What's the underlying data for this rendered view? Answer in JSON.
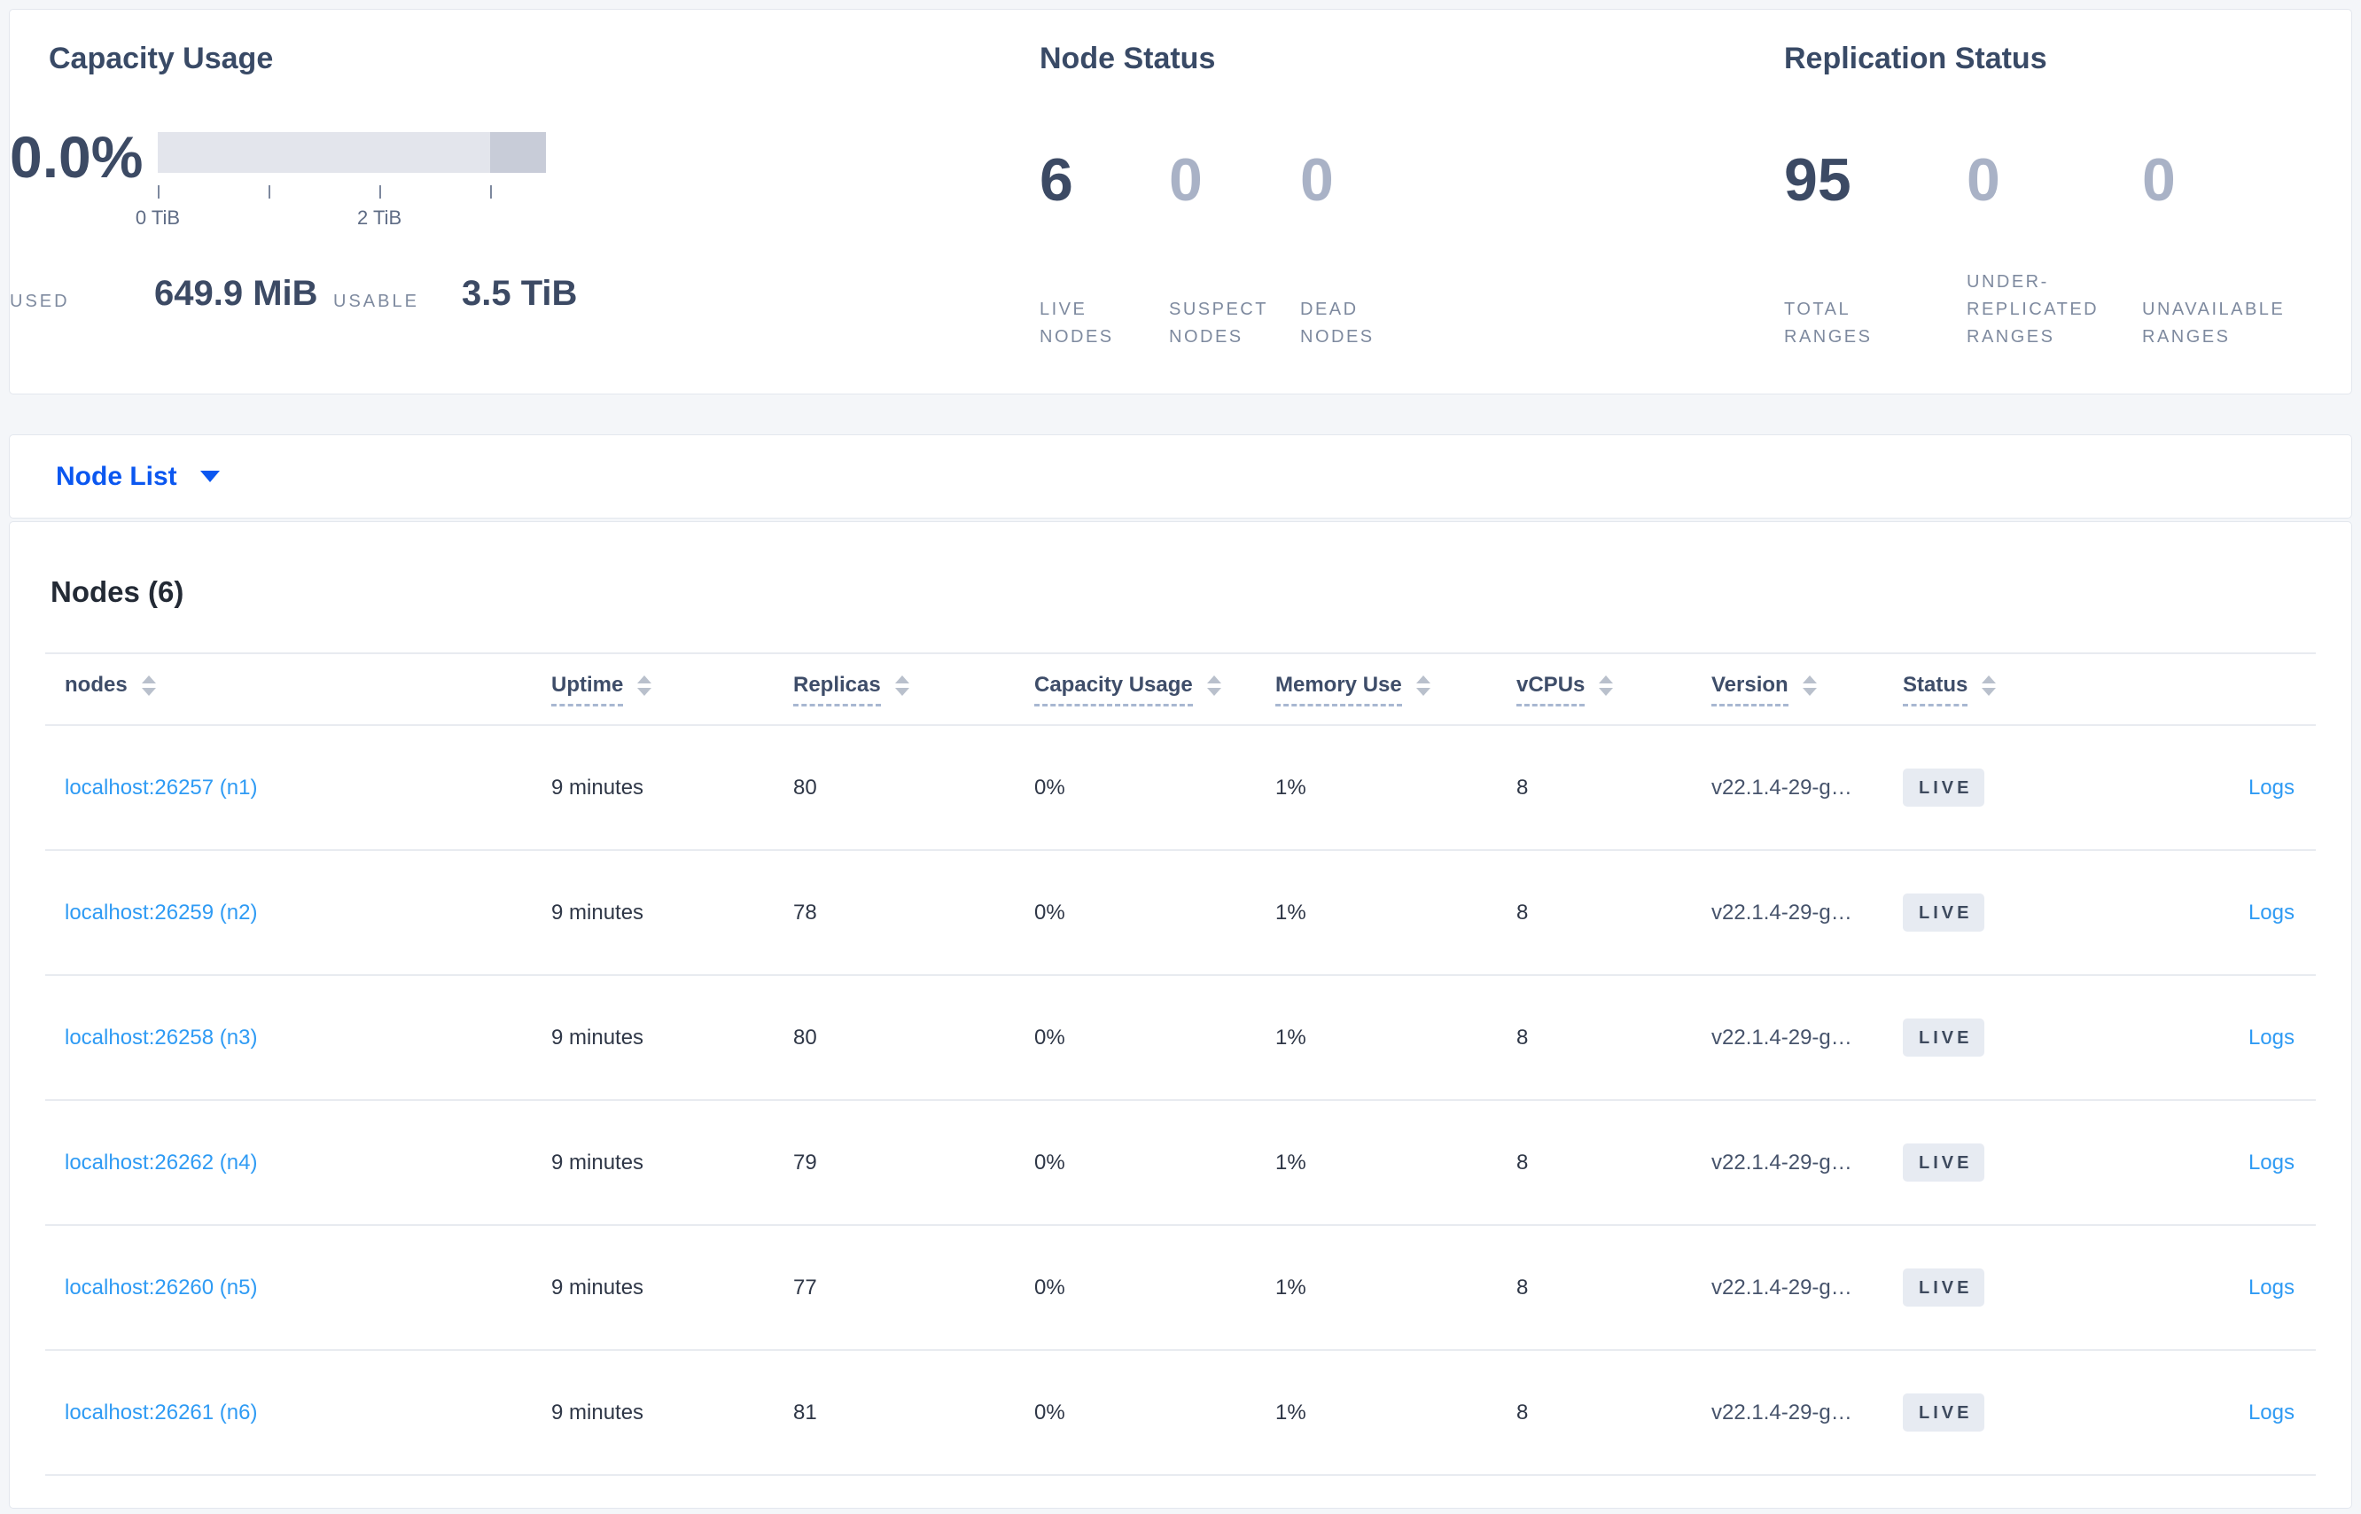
{
  "summary": {
    "capacity": {
      "title": "Capacity Usage",
      "percent": "0.0%",
      "bar": {
        "dark_segment_start_pct": 85.7
      },
      "ticks": [
        {
          "pos_pct": 0,
          "label": "0 TiB"
        },
        {
          "pos_pct": 28.6,
          "label": ""
        },
        {
          "pos_pct": 57.1,
          "label": "2 TiB"
        },
        {
          "pos_pct": 85.7,
          "label": ""
        }
      ],
      "used_label": "USED",
      "used_value": "649.9 MiB",
      "usable_label": "USABLE",
      "usable_value": "3.5 TiB"
    },
    "node_status": {
      "title": "Node Status",
      "stats": [
        {
          "value": "6",
          "label": "LIVE NODES",
          "emphasis": true
        },
        {
          "value": "0",
          "label": "SUSPECT NODES",
          "emphasis": false
        },
        {
          "value": "0",
          "label": "DEAD NODES",
          "emphasis": false
        }
      ]
    },
    "replication_status": {
      "title": "Replication Status",
      "stats": [
        {
          "value": "95",
          "label": "TOTAL RANGES",
          "emphasis": true
        },
        {
          "value": "0",
          "label": "UNDER-REPLICATED RANGES",
          "emphasis": false
        },
        {
          "value": "0",
          "label": "UNAVAILABLE RANGES",
          "emphasis": false
        }
      ]
    }
  },
  "view_selector": {
    "label": "Node List"
  },
  "table": {
    "title": "Nodes (6)",
    "columns": [
      "nodes",
      "Uptime",
      "Replicas",
      "Capacity Usage",
      "Memory Use",
      "vCPUs",
      "Version",
      "Status"
    ],
    "logs_label": "Logs",
    "rows": [
      {
        "node": "localhost:26257 (n1)",
        "uptime": "9 minutes",
        "replicas": "80",
        "capacity": "0%",
        "memory": "1%",
        "vcpus": "8",
        "version": "v22.1.4-29-g…",
        "status": "LIVE",
        "logs": "Logs"
      },
      {
        "node": "localhost:26259 (n2)",
        "uptime": "9 minutes",
        "replicas": "78",
        "capacity": "0%",
        "memory": "1%",
        "vcpus": "8",
        "version": "v22.1.4-29-g…",
        "status": "LIVE",
        "logs": "Logs"
      },
      {
        "node": "localhost:26258 (n3)",
        "uptime": "9 minutes",
        "replicas": "80",
        "capacity": "0%",
        "memory": "1%",
        "vcpus": "8",
        "version": "v22.1.4-29-g…",
        "status": "LIVE",
        "logs": "Logs"
      },
      {
        "node": "localhost:26262 (n4)",
        "uptime": "9 minutes",
        "replicas": "79",
        "capacity": "0%",
        "memory": "1%",
        "vcpus": "8",
        "version": "v22.1.4-29-g…",
        "status": "LIVE",
        "logs": "Logs"
      },
      {
        "node": "localhost:26260 (n5)",
        "uptime": "9 minutes",
        "replicas": "77",
        "capacity": "0%",
        "memory": "1%",
        "vcpus": "8",
        "version": "v22.1.4-29-g…",
        "status": "LIVE",
        "logs": "Logs"
      },
      {
        "node": "localhost:26261 (n6)",
        "uptime": "9 minutes",
        "replicas": "81",
        "capacity": "0%",
        "memory": "1%",
        "vcpus": "8",
        "version": "v22.1.4-29-g…",
        "status": "LIVE",
        "logs": "Logs"
      }
    ]
  },
  "colors": {
    "accent_blue": "#0b57f0",
    "link_blue": "#2f9bf4",
    "dark_slate": "#3c4a64",
    "muted_stat": "#a9b2c6",
    "label_gray": "#7e8a9f",
    "badge_bg": "#e7ebf2",
    "badge_text": "#3e4a5e",
    "bar_light": "#e3e5ec",
    "bar_dark": "#c8ccd8",
    "divider": "#e8ebf0",
    "page_bg": "#f4f6f9"
  }
}
